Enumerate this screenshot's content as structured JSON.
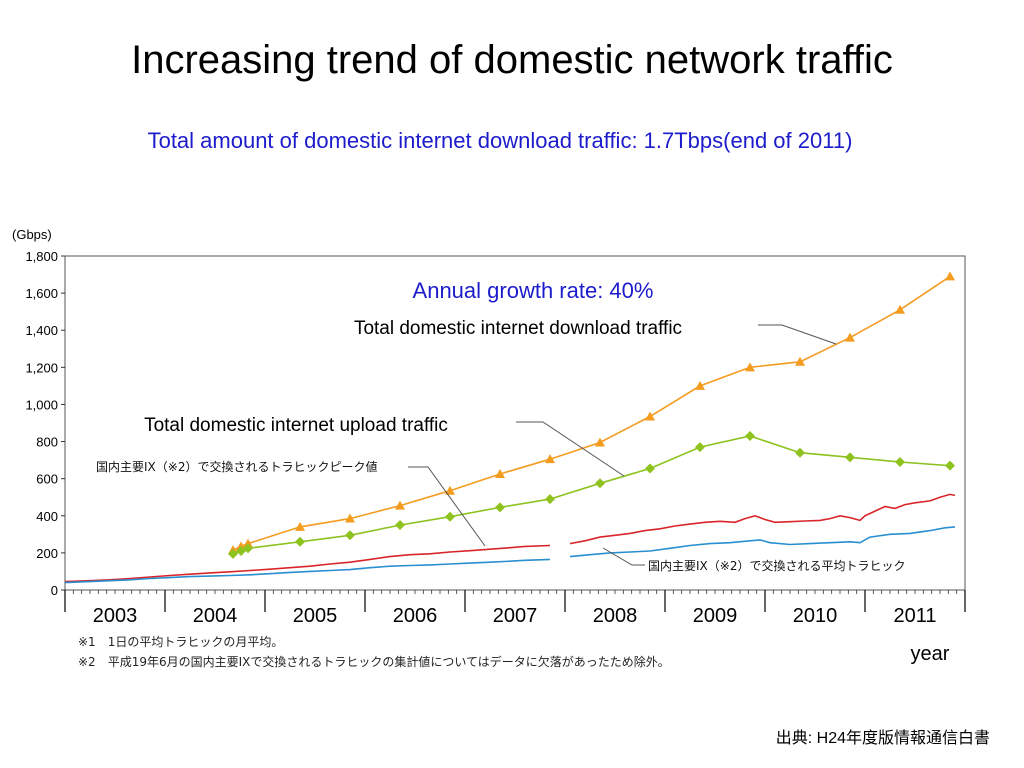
{
  "slide": {
    "title": "Increasing trend of domestic network traffic",
    "subtitle": "Total amount of domestic internet download traffic: 1.7Tbps(end of 2011)",
    "source": "出典: H24年度版情報通信白書"
  },
  "chart_data": {
    "type": "line",
    "ylabel": "(Gbps)",
    "xlabel": "year",
    "ylim": [
      0,
      1800
    ],
    "yticks": [
      0,
      200,
      400,
      600,
      800,
      1000,
      1200,
      1400,
      1600,
      1800
    ],
    "ytick_labels": [
      "0",
      "200",
      "400",
      "600",
      "800",
      "1,000",
      "1,200",
      "1,400",
      "1,600",
      "1,800"
    ],
    "xlim": [
      2002.55,
      2011.55
    ],
    "categories": [
      "2003",
      "2004",
      "2005",
      "2006",
      "2007",
      "2008",
      "2009",
      "2010",
      "2011"
    ],
    "grid": false,
    "annotations": {
      "growth_rate": "Annual growth rate: 40%",
      "download_label": "Total domestic internet download traffic",
      "upload_label": "Total domestic internet upload traffic",
      "ix_peak_label": "国内主要IX（※2）で交換されるトラヒックピーク値",
      "ix_avg_label": "国内主要IX（※2）で交換される平均トラヒック"
    },
    "footnotes": [
      "※1　1日の平均トラヒックの月平均。",
      "※2　平成19年6月の国内主要IXで交換されるトラヒックの集計値についてはデータに欠落があったため除外。"
    ],
    "series": [
      {
        "key": "download",
        "color": "#f39c1f",
        "marker": "triangle",
        "points": [
          [
            2004.23,
            215
          ],
          [
            2004.31,
            235
          ],
          [
            2004.38,
            250
          ],
          [
            2004.9,
            340
          ],
          [
            2005.4,
            385
          ],
          [
            2005.9,
            455
          ],
          [
            2006.4,
            535
          ],
          [
            2006.9,
            625
          ],
          [
            2007.4,
            705
          ],
          [
            2007.9,
            795
          ],
          [
            2008.4,
            935
          ],
          [
            2008.9,
            1100
          ],
          [
            2009.4,
            1200
          ],
          [
            2009.9,
            1230
          ],
          [
            2010.4,
            1360
          ],
          [
            2010.9,
            1510
          ],
          [
            2011.4,
            1690
          ]
        ]
      },
      {
        "key": "upload",
        "color": "#8dc21f",
        "marker": "diamond",
        "points": [
          [
            2004.23,
            195
          ],
          [
            2004.31,
            210
          ],
          [
            2004.38,
            225
          ],
          [
            2004.9,
            260
          ],
          [
            2005.4,
            295
          ],
          [
            2005.9,
            350
          ],
          [
            2006.4,
            395
          ],
          [
            2006.9,
            445
          ],
          [
            2007.4,
            490
          ],
          [
            2007.9,
            575
          ],
          [
            2008.4,
            655
          ],
          [
            2008.9,
            770
          ],
          [
            2009.4,
            830
          ],
          [
            2009.9,
            740
          ],
          [
            2010.4,
            715
          ],
          [
            2010.9,
            690
          ],
          [
            2011.4,
            670
          ]
        ]
      },
      {
        "key": "ix_peak",
        "color": "#d9252a",
        "marker": "none",
        "segments": [
          [
            [
              2002.55,
              45
            ],
            [
              2002.8,
              50
            ],
            [
              2003.0,
              55
            ],
            [
              2003.2,
              62
            ],
            [
              2003.4,
              70
            ],
            [
              2003.6,
              78
            ],
            [
              2003.8,
              85
            ],
            [
              2004.0,
              92
            ],
            [
              2004.2,
              98
            ],
            [
              2004.4,
              105
            ],
            [
              2004.6,
              112
            ],
            [
              2004.8,
              120
            ],
            [
              2005.0,
              128
            ],
            [
              2005.2,
              140
            ],
            [
              2005.4,
              150
            ],
            [
              2005.6,
              165
            ],
            [
              2005.8,
              180
            ],
            [
              2006.0,
              190
            ],
            [
              2006.2,
              195
            ],
            [
              2006.4,
              205
            ],
            [
              2006.6,
              212
            ],
            [
              2006.8,
              220
            ],
            [
              2007.0,
              228
            ],
            [
              2007.15,
              235
            ],
            [
              2007.4,
              240
            ]
          ],
          [
            [
              2007.6,
              250
            ],
            [
              2007.75,
              265
            ],
            [
              2007.9,
              285
            ],
            [
              2008.05,
              295
            ],
            [
              2008.2,
              305
            ],
            [
              2008.35,
              320
            ],
            [
              2008.5,
              330
            ],
            [
              2008.65,
              345
            ],
            [
              2008.8,
              355
            ],
            [
              2008.95,
              365
            ],
            [
              2009.1,
              370
            ],
            [
              2009.25,
              365
            ],
            [
              2009.35,
              385
            ],
            [
              2009.45,
              400
            ],
            [
              2009.55,
              380
            ],
            [
              2009.65,
              365
            ],
            [
              2009.8,
              368
            ],
            [
              2009.95,
              372
            ],
            [
              2010.1,
              375
            ],
            [
              2010.2,
              385
            ],
            [
              2010.3,
              400
            ],
            [
              2010.4,
              390
            ],
            [
              2010.5,
              375
            ],
            [
              2010.55,
              400
            ],
            [
              2010.65,
              425
            ],
            [
              2010.75,
              450
            ],
            [
              2010.85,
              440
            ],
            [
              2010.95,
              460
            ],
            [
              2011.05,
              470
            ],
            [
              2011.2,
              480
            ],
            [
              2011.3,
              500
            ],
            [
              2011.4,
              515
            ],
            [
              2011.45,
              510
            ]
          ]
        ]
      },
      {
        "key": "ix_avg",
        "color": "#2a8fd0",
        "marker": "none",
        "segments": [
          [
            [
              2002.55,
              40
            ],
            [
              2002.8,
              45
            ],
            [
              2003.0,
              50
            ],
            [
              2003.2,
              55
            ],
            [
              2003.4,
              62
            ],
            [
              2003.6,
              67
            ],
            [
              2003.8,
              72
            ],
            [
              2004.0,
              75
            ],
            [
              2004.2,
              78
            ],
            [
              2004.4,
              82
            ],
            [
              2004.6,
              88
            ],
            [
              2004.8,
              95
            ],
            [
              2005.0,
              100
            ],
            [
              2005.2,
              105
            ],
            [
              2005.4,
              110
            ],
            [
              2005.6,
              120
            ],
            [
              2005.8,
              128
            ],
            [
              2006.0,
              132
            ],
            [
              2006.2,
              135
            ],
            [
              2006.4,
              140
            ],
            [
              2006.6,
              145
            ],
            [
              2006.8,
              150
            ],
            [
              2007.0,
              155
            ],
            [
              2007.15,
              160
            ],
            [
              2007.4,
              165
            ]
          ],
          [
            [
              2007.6,
              180
            ],
            [
              2007.8,
              190
            ],
            [
              2008.0,
              200
            ],
            [
              2008.2,
              205
            ],
            [
              2008.4,
              210
            ],
            [
              2008.6,
              225
            ],
            [
              2008.8,
              240
            ],
            [
              2009.0,
              250
            ],
            [
              2009.2,
              255
            ],
            [
              2009.4,
              265
            ],
            [
              2009.5,
              270
            ],
            [
              2009.6,
              255
            ],
            [
              2009.8,
              245
            ],
            [
              2010.0,
              250
            ],
            [
              2010.2,
              255
            ],
            [
              2010.4,
              260
            ],
            [
              2010.5,
              255
            ],
            [
              2010.6,
              285
            ],
            [
              2010.8,
              300
            ],
            [
              2011.0,
              305
            ],
            [
              2011.2,
              320
            ],
            [
              2011.35,
              335
            ],
            [
              2011.45,
              340
            ]
          ]
        ]
      }
    ]
  }
}
